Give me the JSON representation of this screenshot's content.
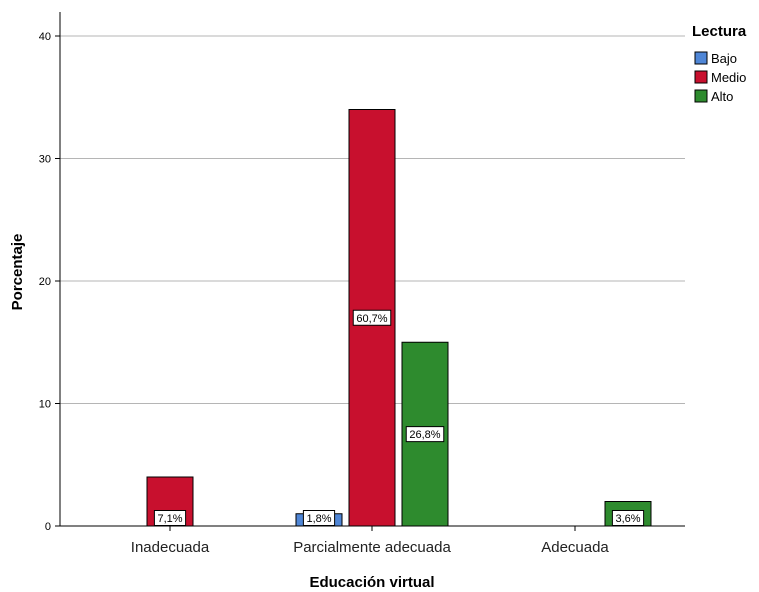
{
  "chart_data": {
    "type": "bar",
    "title": "",
    "xlabel": "Educación virtual",
    "ylabel": "Porcentaje",
    "ylim": [
      0,
      42
    ],
    "yticks": [
      0,
      10,
      20,
      30,
      40
    ],
    "grid": true,
    "legend_position": "top-right",
    "legend_title": "Lectura",
    "categories": [
      "Inadecuada",
      "Parcialmente adecuada",
      "Adecuada"
    ],
    "series": [
      {
        "name": "Bajo",
        "color": "#4f86d6",
        "values": [
          null,
          1,
          null
        ],
        "labels": [
          "",
          "1,8%",
          ""
        ]
      },
      {
        "name": "Medio",
        "color": "#c8102e",
        "values": [
          4,
          34,
          null
        ],
        "labels": [
          "7,1%",
          "60,7%",
          ""
        ]
      },
      {
        "name": "Alto",
        "color": "#2e8b2e",
        "values": [
          null,
          15,
          2
        ],
        "labels": [
          "",
          "26,8%",
          "3,6%"
        ]
      }
    ]
  }
}
